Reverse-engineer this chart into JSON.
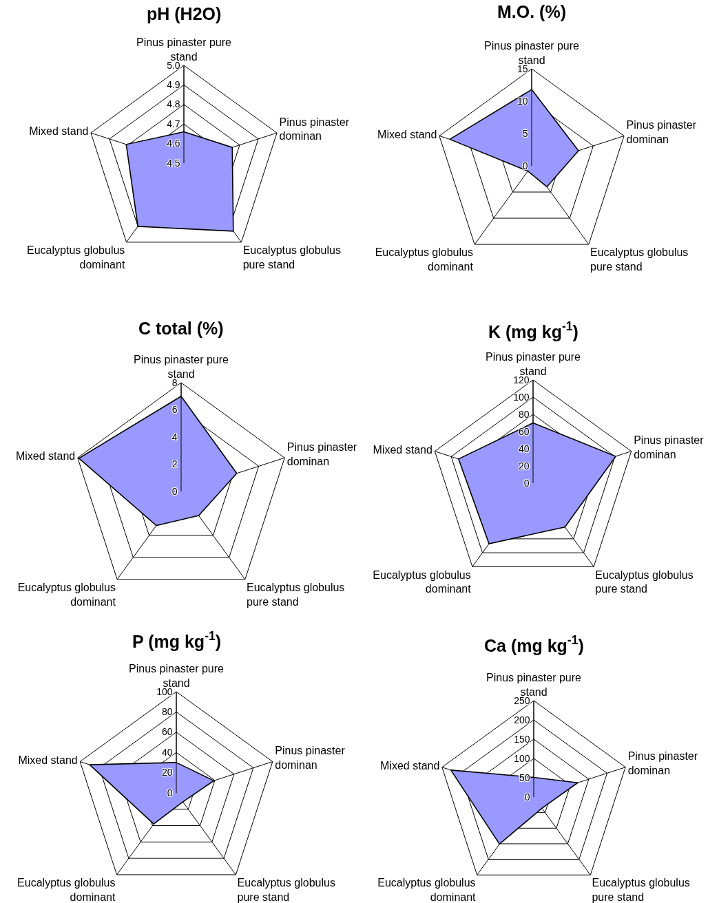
{
  "chart_data": [
    {
      "type": "radar",
      "title": "pH (H2O)",
      "categories": [
        "Pinus pinaster pure stand",
        "Pinus pinaster dominan",
        "Eucalyptus globulus pure stand",
        "Eucalyptus globulus dominant",
        "Mixed stand"
      ],
      "series": [
        {
          "color": "#9999ff",
          "values": [
            4.66,
            4.76,
            4.93,
            4.9,
            4.81
          ]
        }
      ],
      "ylim": [
        4.5,
        5.0
      ],
      "yticks": [
        4.5,
        4.6,
        4.7,
        4.8,
        4.9,
        {
          "value": 5.0,
          "label": "5.0"
        }
      ],
      "grid": true
    },
    {
      "type": "radar",
      "title": "M.O. (%)",
      "categories": [
        "Pinus pinaster pure stand",
        "Pinus pinaster dominan",
        "Eucalyptus globulus pure stand",
        "Eucalyptus globulus dominant",
        "Mixed stand"
      ],
      "series": [
        {
          "color": "#9999ff",
          "values": [
            11.8,
            7.6,
            4.0,
            1.0,
            13.3
          ]
        }
      ],
      "ylim": [
        0,
        15
      ],
      "yticks": [
        0,
        5,
        10,
        15
      ],
      "grid": true
    },
    {
      "type": "radar",
      "title": "C total (%)",
      "categories": [
        "Pinus pinaster pure stand",
        "Pinus pinaster dominan",
        "Eucalyptus globulus pure stand",
        "Eucalyptus globulus dominant",
        "Mixed stand"
      ],
      "series": [
        {
          "color": "#9999ff",
          "values": [
            7.0,
            4.3,
            2.2,
            3.1,
            7.9
          ]
        }
      ],
      "ylim": [
        0,
        8
      ],
      "yticks": [
        0,
        2,
        4,
        6,
        8
      ],
      "grid": true
    },
    {
      "type": "radar",
      "title": "K (mg kg$^{-1}$)",
      "categories": [
        "Pinus pinaster pure stand",
        "Pinus pinaster dominan",
        "Eucalyptus globulus pure stand",
        "Eucalyptus globulus dominant",
        "Mixed stand"
      ],
      "series": [
        {
          "color": "#9999ff",
          "values": [
            70,
            101,
            63,
            87,
            91
          ]
        }
      ],
      "ylim": [
        0,
        120
      ],
      "yticks": [
        0,
        20,
        40,
        60,
        80,
        100,
        120
      ],
      "grid": true
    },
    {
      "type": "radar",
      "title": "P (mg kg$^{-1}$)",
      "categories": [
        "Pinus pinaster pure stand",
        "Pinus pinaster dominan",
        "Eucalyptus globulus pure stand",
        "Eucalyptus globulus dominant",
        "Mixed stand"
      ],
      "series": [
        {
          "color": "#9999ff",
          "values": [
            30,
            39,
            11,
            38,
            90
          ]
        }
      ],
      "ylim": [
        0,
        100
      ],
      "yticks": [
        0,
        20,
        40,
        60,
        80,
        100
      ],
      "grid": true
    },
    {
      "type": "radar",
      "title": "Ca (mg kg$^{-1}$)",
      "categories": [
        "Pinus pinaster pure stand",
        "Pinus pinaster dominan",
        "Eucalyptus globulus pure stand",
        "Eucalyptus globulus dominant",
        "Mixed stand"
      ],
      "series": [
        {
          "color": "#9999ff",
          "values": [
            51,
            120,
            36,
            151,
            226
          ]
        }
      ],
      "ylim": [
        0,
        250
      ],
      "yticks": [
        0,
        50,
        100,
        150,
        200,
        250
      ],
      "grid": true
    }
  ]
}
